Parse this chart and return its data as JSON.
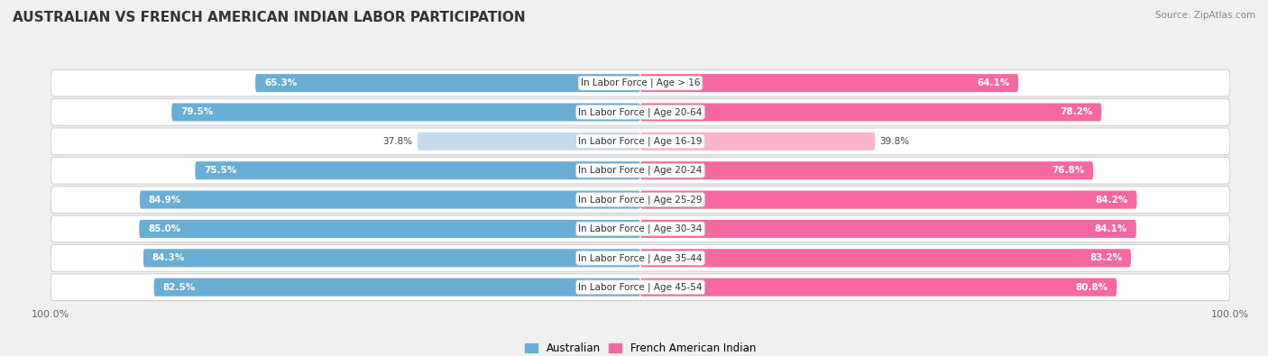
{
  "title": "AUSTRALIAN VS FRENCH AMERICAN INDIAN LABOR PARTICIPATION",
  "source": "Source: ZipAtlas.com",
  "categories": [
    "In Labor Force | Age > 16",
    "In Labor Force | Age 20-64",
    "In Labor Force | Age 16-19",
    "In Labor Force | Age 20-24",
    "In Labor Force | Age 25-29",
    "In Labor Force | Age 30-34",
    "In Labor Force | Age 35-44",
    "In Labor Force | Age 45-54"
  ],
  "australian_values": [
    65.3,
    79.5,
    37.8,
    75.5,
    84.9,
    85.0,
    84.3,
    82.5
  ],
  "french_values": [
    64.1,
    78.2,
    39.8,
    76.8,
    84.2,
    84.1,
    83.2,
    80.8
  ],
  "australian_color": "#6aadd5",
  "french_color": "#f768a1",
  "australian_color_light": "#c6dcee",
  "french_color_light": "#fbb4cb",
  "australian_label": "Australian",
  "french_label": "French American Indian",
  "bg_color": "#f0f0f0",
  "row_bg": "#ffffff",
  "bar_height": 0.62,
  "max_value": 100.0,
  "title_fontsize": 11,
  "label_fontsize": 7.5,
  "value_fontsize": 7.5,
  "source_fontsize": 7.5,
  "legend_fontsize": 8.5
}
